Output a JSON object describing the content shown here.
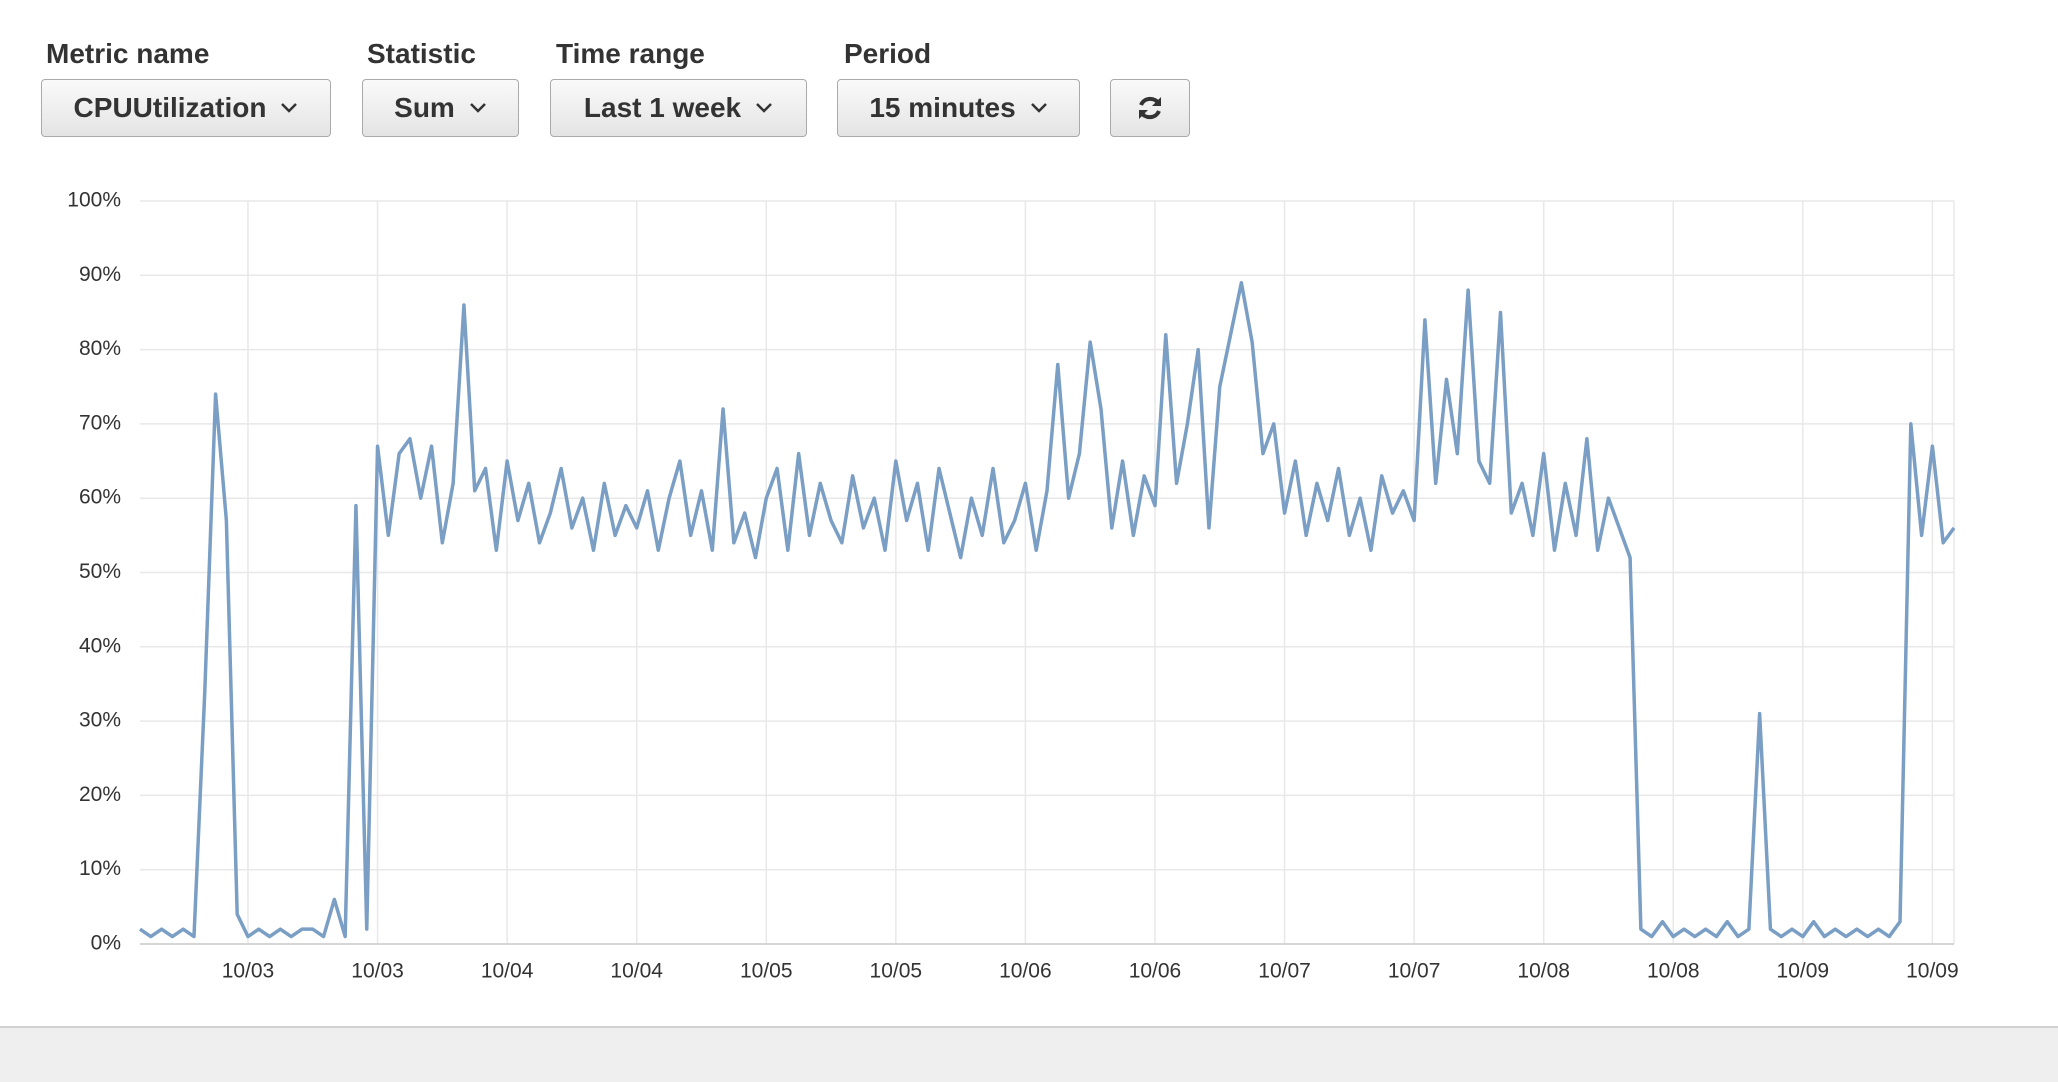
{
  "controls": [
    {
      "label": "Metric name",
      "value": "CPUUtilization"
    },
    {
      "label": "Statistic",
      "value": "Sum"
    },
    {
      "label": "Time range",
      "value": "Last 1 week"
    },
    {
      "label": "Period",
      "value": "15 minutes"
    }
  ],
  "chart_data": {
    "type": "line",
    "categories": [
      null,
      null,
      null,
      null,
      null,
      null,
      null,
      null,
      null,
      null,
      "10/03",
      null,
      null,
      null,
      null,
      null,
      null,
      null,
      null,
      null,
      null,
      null,
      "10/03",
      null,
      null,
      null,
      null,
      null,
      null,
      null,
      null,
      null,
      null,
      null,
      "10/04",
      null,
      null,
      null,
      null,
      null,
      null,
      null,
      null,
      null,
      null,
      null,
      "10/04",
      null,
      null,
      null,
      null,
      null,
      null,
      null,
      null,
      null,
      null,
      null,
      "10/05",
      null,
      null,
      null,
      null,
      null,
      null,
      null,
      null,
      null,
      null,
      null,
      "10/05",
      null,
      null,
      null,
      null,
      null,
      null,
      null,
      null,
      null,
      null,
      null,
      "10/06",
      null,
      null,
      null,
      null,
      null,
      null,
      null,
      null,
      null,
      null,
      null,
      "10/06",
      null,
      null,
      null,
      null,
      null,
      null,
      null,
      null,
      null,
      null,
      null,
      "10/07",
      null,
      null,
      null,
      null,
      null,
      null,
      null,
      null,
      null,
      null,
      null,
      "10/07",
      null,
      null,
      null,
      null,
      null,
      null,
      null,
      null,
      null,
      null,
      null,
      "10/08",
      null,
      null,
      null,
      null,
      null,
      null,
      null,
      null,
      null,
      null,
      null,
      "10/08",
      null,
      null,
      null,
      null,
      null,
      null,
      null,
      null,
      null,
      null,
      null,
      "10/09",
      null,
      null,
      null,
      null,
      null,
      null,
      null,
      null,
      null,
      null,
      null,
      "10/09",
      null,
      null
    ],
    "series": [
      {
        "name": "CPUUtilization",
        "color": "#7a9ec4",
        "values": [
          2,
          1,
          2,
          1,
          2,
          1,
          34,
          74,
          57,
          4,
          1,
          2,
          1,
          2,
          1,
          2,
          2,
          1,
          6,
          1,
          59,
          2,
          67,
          55,
          66,
          68,
          60,
          67,
          54,
          62,
          86,
          61,
          64,
          53,
          65,
          57,
          62,
          54,
          58,
          64,
          56,
          60,
          53,
          62,
          55,
          59,
          56,
          61,
          53,
          60,
          65,
          55,
          61,
          53,
          72,
          54,
          58,
          52,
          60,
          64,
          53,
          66,
          55,
          62,
          57,
          54,
          63,
          56,
          60,
          53,
          65,
          57,
          62,
          53,
          64,
          58,
          52,
          60,
          55,
          64,
          54,
          57,
          62,
          53,
          61,
          78,
          60,
          66,
          81,
          72,
          56,
          65,
          55,
          63,
          59,
          82,
          62,
          70,
          80,
          56,
          75,
          82,
          89,
          81,
          66,
          70,
          58,
          65,
          55,
          62,
          57,
          64,
          55,
          60,
          53,
          63,
          58,
          61,
          57,
          84,
          62,
          76,
          66,
          88,
          65,
          62,
          85,
          58,
          62,
          55,
          66,
          53,
          62,
          55,
          68,
          53,
          60,
          56,
          52,
          2,
          1,
          3,
          1,
          2,
          1,
          2,
          1,
          3,
          1,
          2,
          31,
          2,
          1,
          2,
          1,
          3,
          1,
          2,
          1,
          2,
          1,
          2,
          1,
          3,
          70,
          55,
          67,
          54,
          56
        ]
      }
    ],
    "ylim": [
      0,
      100
    ],
    "yticks": [
      {
        "value": 0,
        "label": "0%"
      },
      {
        "value": 10,
        "label": "10%"
      },
      {
        "value": 20,
        "label": "20%"
      },
      {
        "value": 30,
        "label": "30%"
      },
      {
        "value": 40,
        "label": "40%"
      },
      {
        "value": 50,
        "label": "50%"
      },
      {
        "value": 60,
        "label": "60%"
      },
      {
        "value": 70,
        "label": "70%"
      },
      {
        "value": 80,
        "label": "80%"
      },
      {
        "value": 90,
        "label": "90%"
      },
      {
        "value": 100,
        "label": "100%"
      }
    ],
    "grid": true
  }
}
